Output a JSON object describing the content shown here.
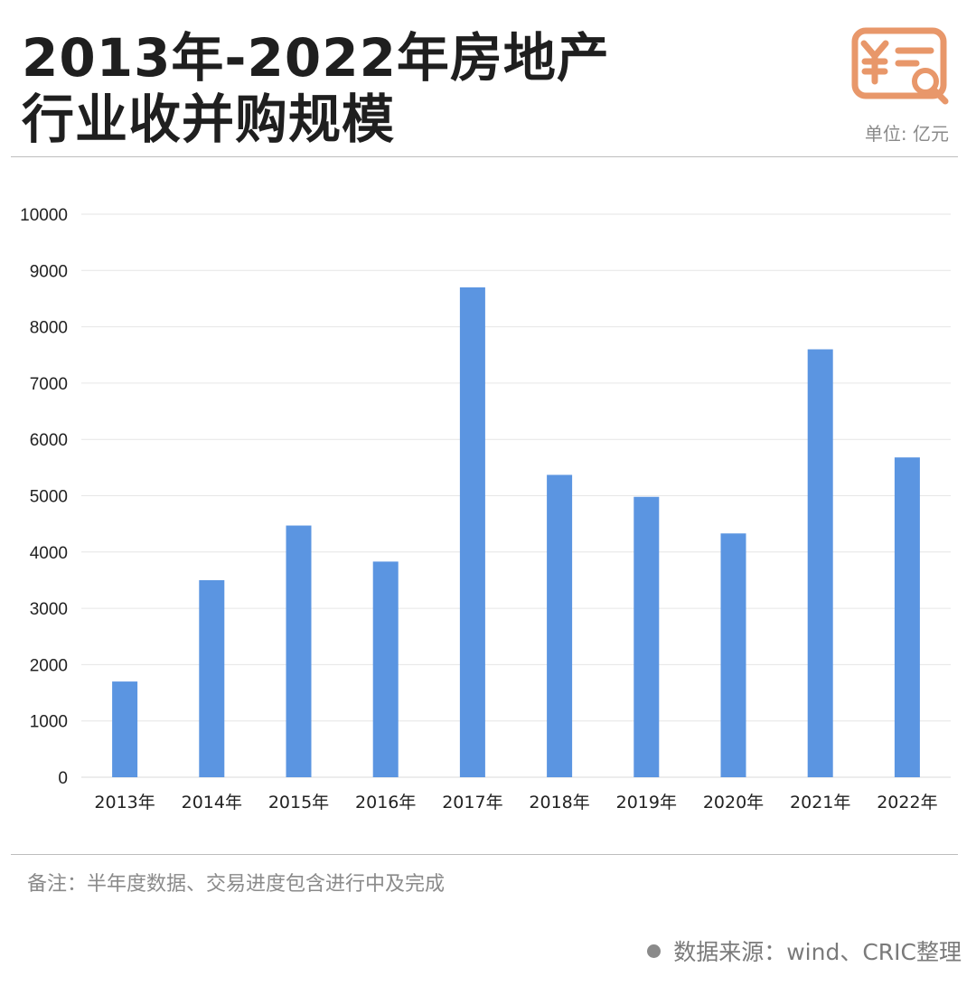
{
  "header": {
    "title_line1": "2013年-2022年房地产",
    "title_line2": "行业收并购规模",
    "unit": "单位: 亿元",
    "logo_icon": "receipt-search-icon"
  },
  "footer": {
    "note": "备注：半年度数据、交易进度包含进行中及完成",
    "source": "数据来源：wind、CRIC整理"
  },
  "colors": {
    "bar": "#5B95E1",
    "logo": "#E8976A",
    "grid": "#E6E6E6"
  },
  "chart_data": {
    "type": "bar",
    "title": "2013年-2022年房地产行业收并购规模",
    "categories": [
      "2013年",
      "2014年",
      "2015年",
      "2016年",
      "2017年",
      "2018年",
      "2019年",
      "2020年",
      "2021年",
      "2022年"
    ],
    "values": [
      1700,
      3500,
      4470,
      3830,
      8700,
      5370,
      4980,
      4330,
      7600,
      5680
    ],
    "ylim": [
      0,
      10000
    ],
    "yticks": [
      0,
      1000,
      2000,
      3000,
      4000,
      5000,
      6000,
      7000,
      8000,
      9000,
      10000
    ],
    "xlabel": "",
    "ylabel": "",
    "grid": true,
    "legend": "none"
  }
}
